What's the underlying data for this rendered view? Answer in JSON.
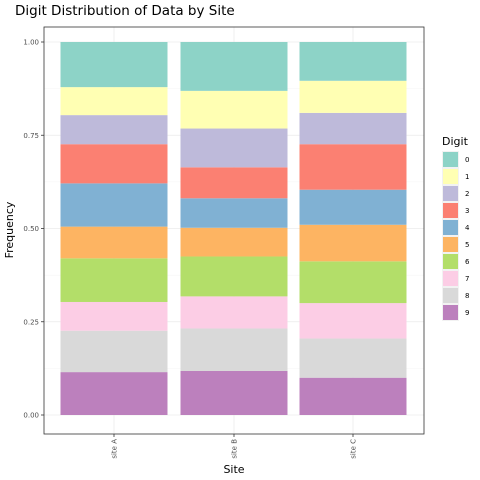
{
  "chart_data": {
    "type": "bar",
    "stacked": true,
    "title": "Digit Distribution of Data by Site",
    "xlabel": "Site",
    "ylabel": "Frequency",
    "ylim": [
      0,
      1
    ],
    "yticks": [
      "0.00",
      "0.25",
      "0.50",
      "0.75",
      "1.00"
    ],
    "categories": [
      "site A",
      "site B",
      "site C"
    ],
    "legend_title": "Digit",
    "legend_position": "right",
    "grid": true,
    "series": [
      {
        "name": "0",
        "color": "#8dd3c7",
        "values": [
          0.121,
          0.131,
          0.104
        ]
      },
      {
        "name": "1",
        "color": "#ffffb3",
        "values": [
          0.075,
          0.101,
          0.086
        ]
      },
      {
        "name": "2",
        "color": "#bebada",
        "values": [
          0.078,
          0.104,
          0.084
        ]
      },
      {
        "name": "3",
        "color": "#fb8072",
        "values": [
          0.105,
          0.083,
          0.122
        ]
      },
      {
        "name": "4",
        "color": "#80b1d3",
        "values": [
          0.116,
          0.079,
          0.094
        ]
      },
      {
        "name": "5",
        "color": "#fdb462",
        "values": [
          0.085,
          0.077,
          0.098
        ]
      },
      {
        "name": "6",
        "color": "#b3de69",
        "values": [
          0.117,
          0.107,
          0.112
        ]
      },
      {
        "name": "7",
        "color": "#fccde5",
        "values": [
          0.077,
          0.086,
          0.095
        ]
      },
      {
        "name": "8",
        "color": "#d9d9d9",
        "values": [
          0.111,
          0.114,
          0.105
        ]
      },
      {
        "name": "9",
        "color": "#bc80bd",
        "values": [
          0.115,
          0.118,
          0.1
        ]
      }
    ]
  }
}
